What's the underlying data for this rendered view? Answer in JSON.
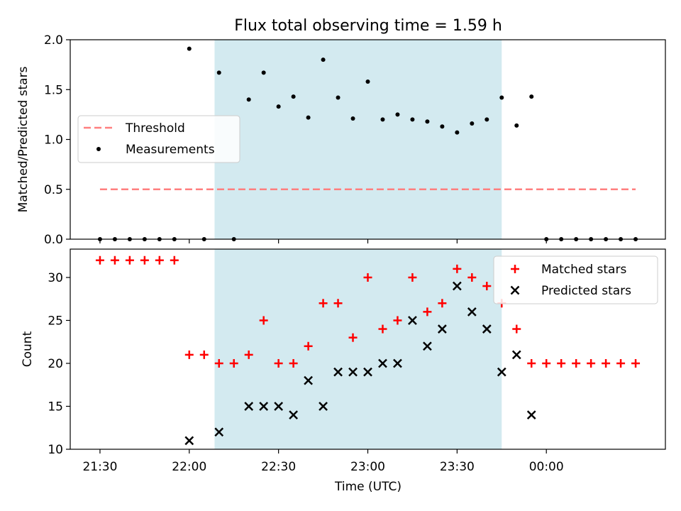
{
  "title": "Flux total observing time = 1.59 h",
  "chart_data": [
    {
      "type": "scatter",
      "ylabel": "Matched/Predicted stars",
      "ylim": [
        0,
        2.0
      ],
      "yticks": [
        0.0,
        0.5,
        1.0,
        1.5,
        2.0
      ],
      "ytick_labels": [
        "0.0",
        "0.5",
        "1.0",
        "1.5",
        "2.0"
      ],
      "xlim_minutes": [
        1280,
        1480
      ],
      "shaded_span_minutes": [
        1328.5,
        1425
      ],
      "shade_color": "#d3eaf0",
      "legend": {
        "placement": "center-left",
        "entries": [
          "Threshold",
          "Measurements"
        ]
      },
      "series": [
        {
          "name": "Threshold",
          "style": "dashed-line",
          "color": "#ff7f7f",
          "x": [
            1290,
            1470
          ],
          "y": [
            0.5,
            0.5
          ]
        },
        {
          "name": "Measurements",
          "style": "dot",
          "color": "#000000",
          "x": [
            1290,
            1295,
            1300,
            1305,
            1310,
            1315,
            1320,
            1325,
            1330,
            1335,
            1340,
            1345,
            1350,
            1355,
            1360,
            1365,
            1370,
            1375,
            1380,
            1385,
            1390,
            1395,
            1400,
            1405,
            1410,
            1415,
            1420,
            1425,
            1430,
            1435,
            1440,
            1445,
            1450,
            1455,
            1460,
            1465,
            1470
          ],
          "y": [
            0,
            0,
            0,
            0,
            0,
            0,
            1.91,
            0,
            1.67,
            0,
            1.4,
            1.67,
            1.33,
            1.43,
            1.22,
            1.8,
            1.42,
            1.21,
            1.58,
            1.2,
            1.25,
            1.2,
            1.18,
            1.13,
            1.07,
            1.16,
            1.2,
            1.42,
            1.14,
            1.43,
            0,
            0,
            0,
            0,
            0,
            0,
            0
          ]
        }
      ]
    },
    {
      "type": "scatter",
      "xlabel": "Time (UTC)",
      "ylabel": "Count",
      "ylim": [
        10,
        33.3
      ],
      "yticks": [
        10,
        15,
        20,
        25,
        30
      ],
      "ytick_labels": [
        "10",
        "15",
        "20",
        "25",
        "30"
      ],
      "xlim_minutes": [
        1280,
        1480
      ],
      "xticks_minutes": [
        1290,
        1320,
        1350,
        1380,
        1410,
        1440
      ],
      "xtick_labels": [
        "21:30",
        "22:00",
        "22:30",
        "23:00",
        "23:30",
        "00:00"
      ],
      "shaded_span_minutes": [
        1328.5,
        1425
      ],
      "shade_color": "#d3eaf0",
      "legend": {
        "placement": "upper-right",
        "entries": [
          "Matched stars",
          "Predicted stars"
        ]
      },
      "series": [
        {
          "name": "Matched stars",
          "marker": "+",
          "color": "#ff0000",
          "x": [
            1290,
            1295,
            1300,
            1305,
            1310,
            1315,
            1320,
            1325,
            1330,
            1335,
            1340,
            1345,
            1350,
            1355,
            1360,
            1365,
            1370,
            1375,
            1380,
            1385,
            1390,
            1395,
            1400,
            1405,
            1410,
            1415,
            1420,
            1425,
            1430,
            1435,
            1440,
            1445,
            1450,
            1455,
            1460,
            1465,
            1470
          ],
          "y": [
            32,
            32,
            32,
            32,
            32,
            32,
            21,
            21,
            20,
            20,
            21,
            25,
            20,
            20,
            22,
            27,
            27,
            23,
            30,
            24,
            25,
            30,
            26,
            27,
            31,
            30,
            29,
            27,
            24,
            20,
            20,
            20,
            20,
            20,
            20,
            20,
            20
          ]
        },
        {
          "name": "Predicted stars",
          "marker": "x",
          "color": "#000000",
          "x": [
            1320,
            1330,
            1340,
            1345,
            1350,
            1355,
            1360,
            1365,
            1370,
            1375,
            1380,
            1385,
            1390,
            1395,
            1400,
            1405,
            1410,
            1415,
            1420,
            1425,
            1430,
            1435
          ],
          "y": [
            11,
            12,
            15,
            15,
            15,
            14,
            18,
            15,
            19,
            19,
            19,
            20,
            20,
            25,
            22,
            24,
            29,
            26,
            24,
            19,
            21,
            14
          ]
        }
      ]
    }
  ]
}
